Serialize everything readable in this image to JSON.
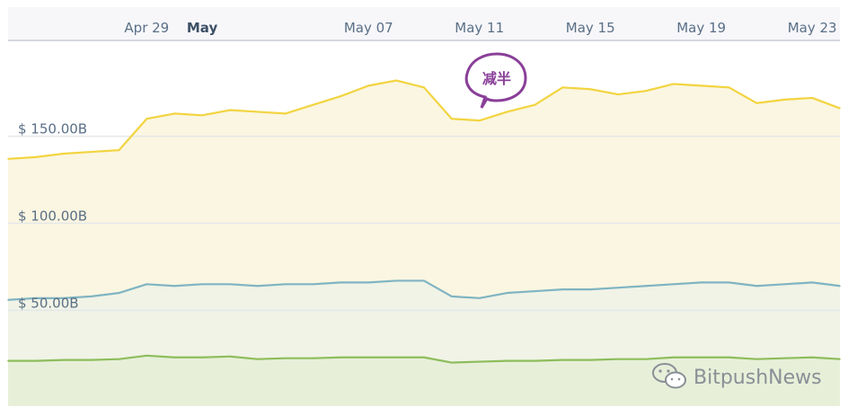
{
  "chart_data": {
    "type": "area",
    "x_ticks": [
      {
        "label": "Apr 29",
        "date": "2020-04-29",
        "bold": false
      },
      {
        "label": "May",
        "date": "2020-05-01",
        "bold": true
      },
      {
        "label": "May 07",
        "date": "2020-05-07",
        "bold": false
      },
      {
        "label": "May 11",
        "date": "2020-05-11",
        "bold": false
      },
      {
        "label": "May 15",
        "date": "2020-05-15",
        "bold": false
      },
      {
        "label": "May 19",
        "date": "2020-05-19",
        "bold": false
      },
      {
        "label": "May 23",
        "date": "2020-05-23",
        "bold": false
      }
    ],
    "y_ticks": [
      {
        "label": "$ 50.00B",
        "value": 50
      },
      {
        "label": "$ 100.00B",
        "value": 100
      },
      {
        "label": "$ 150.00B",
        "value": 150
      }
    ],
    "x_range": [
      "2020-04-24",
      "2020-05-24"
    ],
    "ylim": [
      -5,
      205
    ],
    "series": [
      {
        "color": "#f2d440",
        "fill": "#fbf6e1",
        "x": [
          "2020-04-24",
          "2020-04-25",
          "2020-04-26",
          "2020-04-27",
          "2020-04-28",
          "2020-04-29",
          "2020-04-30",
          "2020-05-01",
          "2020-05-02",
          "2020-05-03",
          "2020-05-04",
          "2020-05-05",
          "2020-05-06",
          "2020-05-07",
          "2020-05-08",
          "2020-05-09",
          "2020-05-10",
          "2020-05-11",
          "2020-05-12",
          "2020-05-13",
          "2020-05-14",
          "2020-05-15",
          "2020-05-16",
          "2020-05-17",
          "2020-05-18",
          "2020-05-19",
          "2020-05-20",
          "2020-05-21",
          "2020-05-22",
          "2020-05-23",
          "2020-05-24"
        ],
        "values": [
          137,
          138,
          140,
          141,
          142,
          160,
          163,
          162,
          165,
          164,
          163,
          168,
          173,
          179,
          182,
          178,
          160,
          159,
          164,
          168,
          178,
          177,
          174,
          176,
          180,
          179,
          178,
          169,
          171,
          172,
          166
        ]
      },
      {
        "color": "#7fb4c2",
        "fill": "#f0f3e6",
        "x": [
          "2020-04-24",
          "2020-04-25",
          "2020-04-26",
          "2020-04-27",
          "2020-04-28",
          "2020-04-29",
          "2020-04-30",
          "2020-05-01",
          "2020-05-02",
          "2020-05-03",
          "2020-05-04",
          "2020-05-05",
          "2020-05-06",
          "2020-05-07",
          "2020-05-08",
          "2020-05-09",
          "2020-05-10",
          "2020-05-11",
          "2020-05-12",
          "2020-05-13",
          "2020-05-14",
          "2020-05-15",
          "2020-05-16",
          "2020-05-17",
          "2020-05-18",
          "2020-05-19",
          "2020-05-20",
          "2020-05-21",
          "2020-05-22",
          "2020-05-23",
          "2020-05-24"
        ],
        "values": [
          56,
          57,
          57,
          58,
          60,
          65,
          64,
          65,
          65,
          64,
          65,
          65,
          66,
          66,
          67,
          67,
          58,
          57,
          60,
          61,
          62,
          62,
          63,
          64,
          65,
          66,
          66,
          64,
          65,
          66,
          64
        ]
      },
      {
        "color": "#8dbd5b",
        "fill": "#e7efd9",
        "x": [
          "2020-04-24",
          "2020-04-25",
          "2020-04-26",
          "2020-04-27",
          "2020-04-28",
          "2020-04-29",
          "2020-04-30",
          "2020-05-01",
          "2020-05-02",
          "2020-05-03",
          "2020-05-04",
          "2020-05-05",
          "2020-05-06",
          "2020-05-07",
          "2020-05-08",
          "2020-05-09",
          "2020-05-10",
          "2020-05-11",
          "2020-05-12",
          "2020-05-13",
          "2020-05-14",
          "2020-05-15",
          "2020-05-16",
          "2020-05-17",
          "2020-05-18",
          "2020-05-19",
          "2020-05-20",
          "2020-05-21",
          "2020-05-22",
          "2020-05-23",
          "2020-05-24"
        ],
        "values": [
          21,
          21,
          21.5,
          21.5,
          22,
          24,
          23,
          23,
          23.5,
          22,
          22.5,
          22.5,
          23,
          23,
          23,
          23,
          20,
          20.5,
          21,
          21,
          21.5,
          21.5,
          22,
          22,
          23,
          23,
          23,
          22,
          22.5,
          23,
          22
        ]
      }
    ],
    "annotation": {
      "text": "减半",
      "date": "2020-05-11",
      "value": 160
    },
    "grid": true
  },
  "header_band_color": "#f7f7fa",
  "watermark": {
    "text": "BitpushNews",
    "icon": "wechat-icon"
  }
}
